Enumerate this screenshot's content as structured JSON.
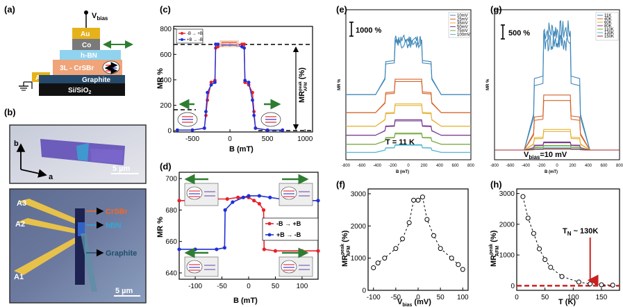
{
  "panels": {
    "a": {
      "label": "(a)",
      "vbias": "V",
      "vbias_sub": "bias",
      "layers": {
        "au_top": "Au",
        "co": "Co",
        "hbn": "h-BN",
        "crsbr": "3L - CrSBr",
        "au_left": "Au",
        "graphite": "Graphite",
        "substrate": "Si/SiO"
      },
      "substrate_sub": "2"
    },
    "b": {
      "label": "(b)",
      "axis_b": "b",
      "axis_a": "a",
      "scale_top": "5 µm",
      "scale_bottom": "5 µm",
      "contacts": [
        "A3",
        "A2",
        "A1"
      ],
      "material_labels": [
        "CrSBr",
        "hBN",
        "Graphite"
      ]
    },
    "c": {
      "label": "(c)",
      "xlabel": "B (mT)",
      "ylabel": "MR %",
      "side_label": "MR",
      "side_sup": "peak",
      "side_sub": "AFM",
      "side_unit": "(%)"
    },
    "d": {
      "label": "(d)",
      "xlabel": "B (mT)",
      "ylabel": "MR %"
    },
    "e": {
      "label": "(e)",
      "xlabel": "B (mT)",
      "ylabel": "MR %",
      "scale_text": "1000 %",
      "temp_text": "T = 11 K"
    },
    "f": {
      "label": "(f)",
      "xlabel_main": "V",
      "xlabel_sub": "bias",
      "xlabel_unit": " (mV)",
      "ylabel_main": "MR",
      "ylabel_sup": "peak",
      "ylabel_sub": "AFM",
      "ylabel_unit": " (%)"
    },
    "g": {
      "label": "(g)",
      "xlabel": "B (mT)",
      "ylabel": "MR %",
      "scale_text": "500 %",
      "vb_main": "V",
      "vb_sub": "bias",
      "vb_rest": "=10 mV"
    },
    "h": {
      "label": "(h)",
      "xlabel": "T (K)",
      "ylabel_main": "MR",
      "ylabel_sup": "peak",
      "ylabel_sub": "AFM",
      "ylabel_unit": " (%)",
      "tn_main": "T",
      "tn_sub": "N",
      "tn_rest": " ~ 130K"
    }
  },
  "chart_data": [
    {
      "id": "c",
      "type": "line",
      "xlim": [
        -750,
        1100
      ],
      "ylim": [
        -10,
        820
      ],
      "xticks": [
        -500,
        0,
        500,
        1000
      ],
      "yticks": [
        0,
        200,
        400,
        600,
        800
      ],
      "series": [
        {
          "name": "-B → +B",
          "color": "#e8212a",
          "x": [
            -700,
            -500,
            -340,
            -320,
            -300,
            -250,
            -200,
            -190,
            -160,
            -100,
            0,
            100,
            160,
            190,
            200,
            250,
            300,
            320,
            340,
            500,
            700
          ],
          "y": [
            5,
            5,
            20,
            120,
            240,
            380,
            395,
            650,
            660,
            670,
            675,
            675,
            680,
            680,
            380,
            360,
            300,
            150,
            20,
            5,
            5
          ]
        },
        {
          "name": "+B → -B",
          "color": "#1f2fd6",
          "x": [
            -700,
            -500,
            -340,
            -320,
            -300,
            -250,
            -200,
            -190,
            -160,
            -100,
            0,
            100,
            160,
            190,
            200,
            250,
            300,
            320,
            340,
            500,
            700
          ],
          "y": [
            5,
            5,
            20,
            150,
            300,
            360,
            380,
            680,
            680,
            675,
            675,
            670,
            660,
            650,
            395,
            380,
            240,
            120,
            20,
            5,
            5
          ]
        }
      ]
    },
    {
      "id": "d",
      "type": "line",
      "xlim": [
        -130,
        130
      ],
      "ylim": [
        636,
        704
      ],
      "xticks": [
        -100,
        -50,
        0,
        50,
        100
      ],
      "yticks": [
        640,
        660,
        680,
        700
      ],
      "series": [
        {
          "name": "-B → +B",
          "color": "#e8212a",
          "x": [
            -130,
            -100,
            -60,
            -40,
            -20,
            0,
            10,
            20,
            28,
            29,
            50,
            100,
            130
          ],
          "y": [
            686,
            686,
            687,
            687,
            688,
            688,
            686,
            684,
            680,
            655,
            654,
            654,
            654
          ]
        },
        {
          "name": "+B → -B",
          "color": "#1f2fd6",
          "x": [
            -130,
            -100,
            -60,
            -45,
            -44,
            -30,
            -10,
            0,
            20,
            40,
            60,
            100,
            130
          ],
          "y": [
            655,
            655,
            655,
            656,
            680,
            685,
            688,
            689,
            689,
            688,
            687,
            686,
            686
          ]
        }
      ]
    },
    {
      "id": "e",
      "type": "line",
      "xlim": [
        -800,
        800
      ],
      "xticks": [
        -800,
        -600,
        -400,
        -200,
        0,
        200,
        400,
        600,
        800
      ],
      "legend": [
        "10mV",
        "25mV",
        "35mV",
        "50mV",
        "75mV",
        "100mV"
      ],
      "colors": [
        "#3d86b8",
        "#d4632a",
        "#e6b234",
        "#7a3b8f",
        "#78ab3e",
        "#4fb6d2"
      ],
      "offsets": [
        3.3,
        2.3,
        1.55,
        1.05,
        0.55,
        0.1
      ],
      "heights": [
        3.2,
        1.95,
        1.3,
        0.9,
        0.65,
        0.45
      ]
    },
    {
      "id": "f",
      "type": "scatter",
      "xlim": [
        -112,
        112
      ],
      "ylim": [
        0,
        3150
      ],
      "xticks": [
        -100,
        -50,
        0,
        50,
        100
      ],
      "yticks": [
        0,
        1000,
        2000,
        3000
      ],
      "x": [
        -100,
        -90,
        -75,
        -50,
        -35,
        -20,
        -10,
        0,
        10,
        20,
        35,
        50,
        75,
        90,
        100
      ],
      "y": [
        700,
        850,
        1000,
        1300,
        1600,
        2100,
        2800,
        2800,
        2900,
        2200,
        1700,
        1300,
        1000,
        800,
        650
      ]
    },
    {
      "id": "g",
      "type": "line",
      "xlim": [
        -800,
        800
      ],
      "xticks": [
        -800,
        -600,
        -400,
        -200,
        0,
        200,
        400,
        600,
        800
      ],
      "legend": [
        "11K",
        "40K",
        "60K",
        "80K",
        "110K",
        "130K",
        "150K"
      ],
      "colors": [
        "#3d86b8",
        "#d4632a",
        "#e6b234",
        "#7a3b8f",
        "#78ab3e",
        "#4fb6d2",
        "#9e2a2b"
      ],
      "heights": [
        5.2,
        2.4,
        0.9,
        0.35,
        0.2,
        0.1,
        0.05
      ]
    },
    {
      "id": "h",
      "type": "scatter",
      "xlim": [
        0,
        182
      ],
      "ylim": [
        -150,
        3150
      ],
      "xticks": [
        0,
        50,
        100,
        150
      ],
      "yticks": [
        0,
        1000,
        2000,
        3000
      ],
      "x": [
        11,
        20,
        30,
        40,
        50,
        60,
        80,
        110,
        130,
        150,
        170
      ],
      "y": [
        2900,
        2200,
        1700,
        1200,
        850,
        600,
        300,
        120,
        60,
        30,
        20
      ],
      "tn": 130
    }
  ]
}
